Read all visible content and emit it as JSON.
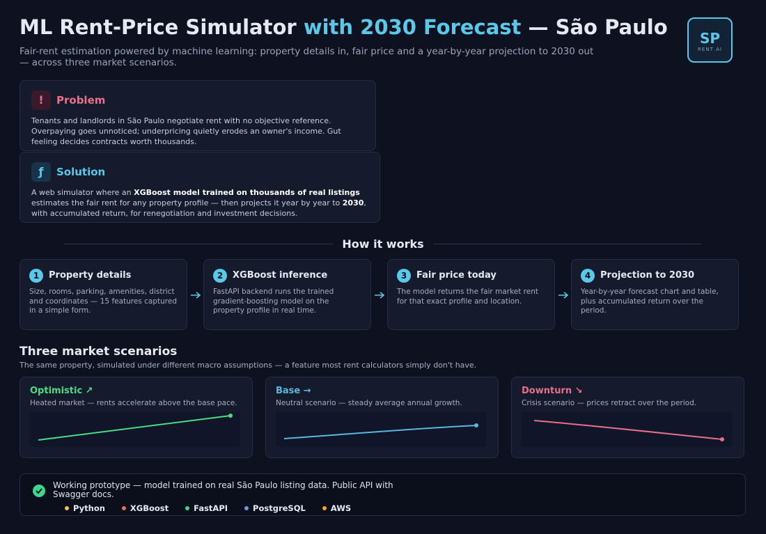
{
  "header": {
    "title": {
      "lead": "ML Rent-Price Simulator",
      "accent": "with 2030 Forecast",
      "tail": "— São Paulo"
    },
    "subtitle": "Fair-rent estimation powered by machine learning: property details in, fair price and a year-by-year projection to 2030 out — across three market scenarios.",
    "badge": {
      "code": "SP",
      "label": "RENT AI"
    }
  },
  "problem": {
    "icon": "!",
    "title": "Problem",
    "text": "Tenants and landlords in São Paulo negotiate rent with no objective reference. Overpaying goes unnoticed; underpricing quietly erodes an owner's income. Gut feeling decides contracts worth thousands."
  },
  "solution": {
    "icon": "ƒ",
    "title": "Solution",
    "text": {
      "part1": "A web simulator where an",
      "bold1": "XGBoost model trained on thousands of real listings",
      "part2": "estimates the fair rent for any property profile — then projects it year by year to",
      "bold2": "2030",
      "part3": ", with accumulated return, for renegotiation and investment decisions."
    }
  },
  "how_it_works": {
    "title": "How it works",
    "steps": [
      {
        "number": "1",
        "title": "Property details",
        "text": "Size, rooms, parking, amenities, district and coordinates — 15 features captured in a simple form."
      },
      {
        "number": "2",
        "title": "XGBoost inference",
        "text": "FastAPI backend runs the trained gradient-boosting model on the property profile in real time."
      },
      {
        "number": "3",
        "title": "Fair price today",
        "text": "The model returns the fair market rent for that exact profile and location."
      },
      {
        "number": "4",
        "title": "Projection to 2030",
        "text": "Year-by-year forecast chart and table, plus accumulated return over the period."
      }
    ]
  },
  "scenarios": {
    "title": "Three market scenarios",
    "subtitle": "The same property, simulated under different macro assumptions — a feature most rent calculators simply don't have.",
    "items": [
      {
        "title": "Optimistic ↗",
        "text": "Heated market — rents accelerate above the base pace.",
        "color": "#4ade80"
      },
      {
        "title": "Base →",
        "text": "Neutral scenario — steady average annual growth.",
        "color": "#5ab8e0"
      },
      {
        "title": "Downturn ↘",
        "text": "Crisis scenario — prices retract over the period.",
        "color": "#e8708a"
      }
    ]
  },
  "footer": {
    "text": "Working prototype — model trained on real São Paulo listing data. Public API with Swagger docs.",
    "tech": [
      {
        "name": "Python",
        "color": "#f5c542"
      },
      {
        "name": "XGBoost",
        "color": "#e8705a"
      },
      {
        "name": "FastAPI",
        "color": "#3dd68c"
      },
      {
        "name": "PostgreSQL",
        "color": "#6b9ce8"
      },
      {
        "name": "AWS",
        "color": "#f5a623"
      }
    ]
  }
}
